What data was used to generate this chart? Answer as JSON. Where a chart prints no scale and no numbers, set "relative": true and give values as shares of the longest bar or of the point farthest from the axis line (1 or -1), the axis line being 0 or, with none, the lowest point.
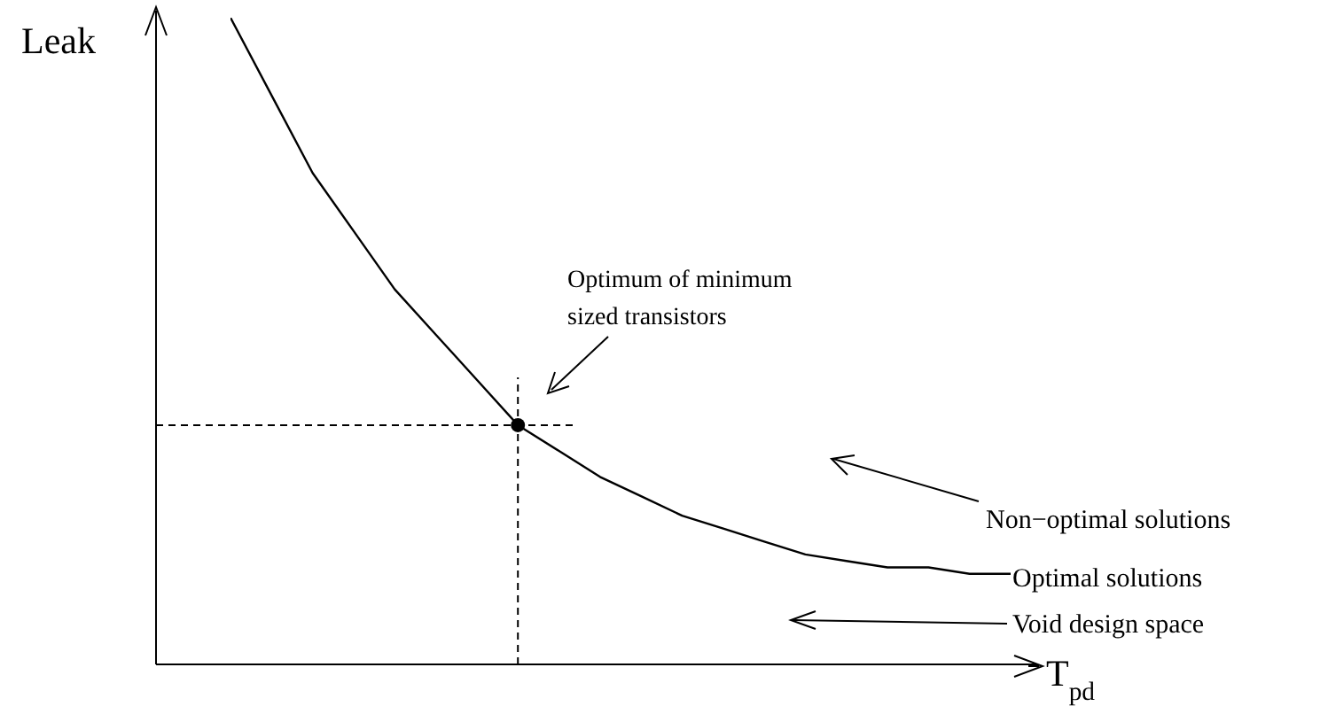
{
  "chart_data": {
    "type": "line",
    "relative": true,
    "xlabel": "T$_{pd}$",
    "ylabel": "Leak",
    "categories": [
      null,
      null,
      null,
      null,
      null,
      null,
      null,
      null,
      null,
      null,
      null,
      null,
      null,
      null,
      null,
      null,
      null,
      null,
      null,
      null
    ],
    "series": [
      {
        "color": "#000000",
        "values": [
          1,
          0.88,
          0.76,
          0.67,
          0.58,
          0.51,
          0.44,
          0.37,
          0.33,
          0.29,
          0.26,
          0.23,
          0.21,
          0.19,
          0.17,
          0.16,
          0.15,
          0.15,
          0.14,
          0.14
        ]
      }
    ],
    "ref_lines": [
      {
        "axis": "y",
        "value": 0.37,
        "color": "#000000",
        "line_style": "dashed"
      }
    ],
    "annotations": [
      "Optimum of minimum\nsized transistors",
      "Non−optimal solutions",
      "Optimal solutions",
      "Void design space"
    ],
    "marker": "none",
    "line_style": "solid",
    "grid": false,
    "legend": false
  }
}
